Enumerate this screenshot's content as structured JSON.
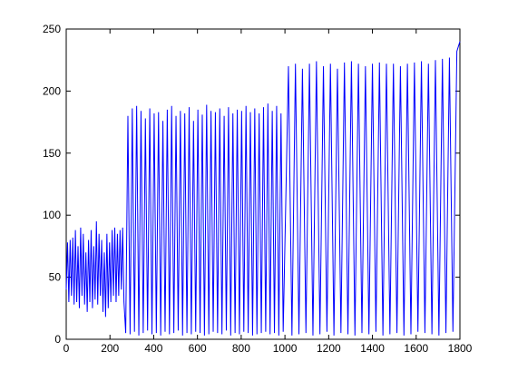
{
  "chart_data": {
    "type": "line",
    "x": [
      0,
      6,
      12,
      18,
      24,
      30,
      36,
      42,
      48,
      54,
      60,
      66,
      72,
      78,
      84,
      90,
      96,
      102,
      108,
      114,
      120,
      126,
      132,
      138,
      144,
      150,
      156,
      162,
      168,
      174,
      180,
      186,
      192,
      198,
      204,
      210,
      216,
      222,
      228,
      234,
      240,
      246,
      252,
      258,
      264,
      272,
      282,
      292,
      302,
      312,
      322,
      332,
      342,
      352,
      362,
      372,
      382,
      392,
      402,
      412,
      422,
      432,
      442,
      452,
      462,
      472,
      482,
      492,
      502,
      512,
      522,
      532,
      542,
      552,
      562,
      572,
      582,
      592,
      602,
      612,
      622,
      632,
      642,
      652,
      662,
      672,
      682,
      692,
      702,
      712,
      722,
      732,
      742,
      752,
      762,
      772,
      782,
      792,
      802,
      812,
      822,
      832,
      842,
      852,
      862,
      872,
      882,
      892,
      902,
      912,
      922,
      932,
      942,
      952,
      962,
      972,
      982,
      992,
      1016,
      1032,
      1048,
      1064,
      1080,
      1096,
      1112,
      1128,
      1144,
      1160,
      1176,
      1192,
      1208,
      1224,
      1240,
      1256,
      1272,
      1288,
      1304,
      1320,
      1336,
      1352,
      1368,
      1384,
      1400,
      1416,
      1432,
      1448,
      1464,
      1480,
      1496,
      1512,
      1528,
      1544,
      1560,
      1576,
      1592,
      1608,
      1624,
      1640,
      1656,
      1672,
      1688,
      1704,
      1720,
      1736,
      1752,
      1768,
      1786,
      1800
    ],
    "series": [
      {
        "color": "#0000ff",
        "values": [
          40,
          78,
          30,
          80,
          35,
          82,
          28,
          88,
          30,
          75,
          25,
          90,
          35,
          85,
          28,
          70,
          22,
          80,
          30,
          88,
          25,
          75,
          32,
          95,
          28,
          85,
          35,
          80,
          22,
          70,
          18,
          85,
          25,
          78,
          30,
          88,
          35,
          90,
          30,
          85,
          35,
          88,
          40,
          90,
          30,
          5,
          180,
          4,
          186,
          6,
          188,
          3,
          184,
          5,
          178,
          7,
          186,
          4,
          182,
          5,
          183,
          3,
          176,
          6,
          185,
          4,
          188,
          5,
          180,
          7,
          184,
          3,
          182,
          5,
          187,
          4,
          176,
          6,
          185,
          5,
          181,
          3,
          189,
          4,
          184,
          6,
          183,
          5,
          186,
          4,
          180,
          7,
          187,
          3,
          182,
          5,
          185,
          4,
          184,
          6,
          188,
          5,
          183,
          3,
          186,
          4,
          182,
          5,
          187,
          6,
          190,
          4,
          184,
          5,
          188,
          3,
          182,
          6,
          220,
          3,
          222,
          4,
          218,
          5,
          222,
          3,
          224,
          4,
          220,
          6,
          222,
          3,
          218,
          5,
          223,
          4,
          224,
          3,
          222,
          5,
          220,
          4,
          222,
          6,
          223,
          3,
          222,
          4,
          222,
          5,
          220,
          3,
          222,
          4,
          223,
          6,
          224,
          5,
          222,
          4,
          225,
          3,
          226,
          5,
          227,
          6,
          232,
          240
        ]
      }
    ],
    "xlim": [
      0,
      1800
    ],
    "xticks": [
      0,
      200,
      400,
      600,
      800,
      1000,
      1200,
      1400,
      1600,
      1800
    ],
    "ylim": [
      0,
      250
    ],
    "yticks": [
      0,
      50,
      100,
      150,
      200,
      250
    ]
  }
}
